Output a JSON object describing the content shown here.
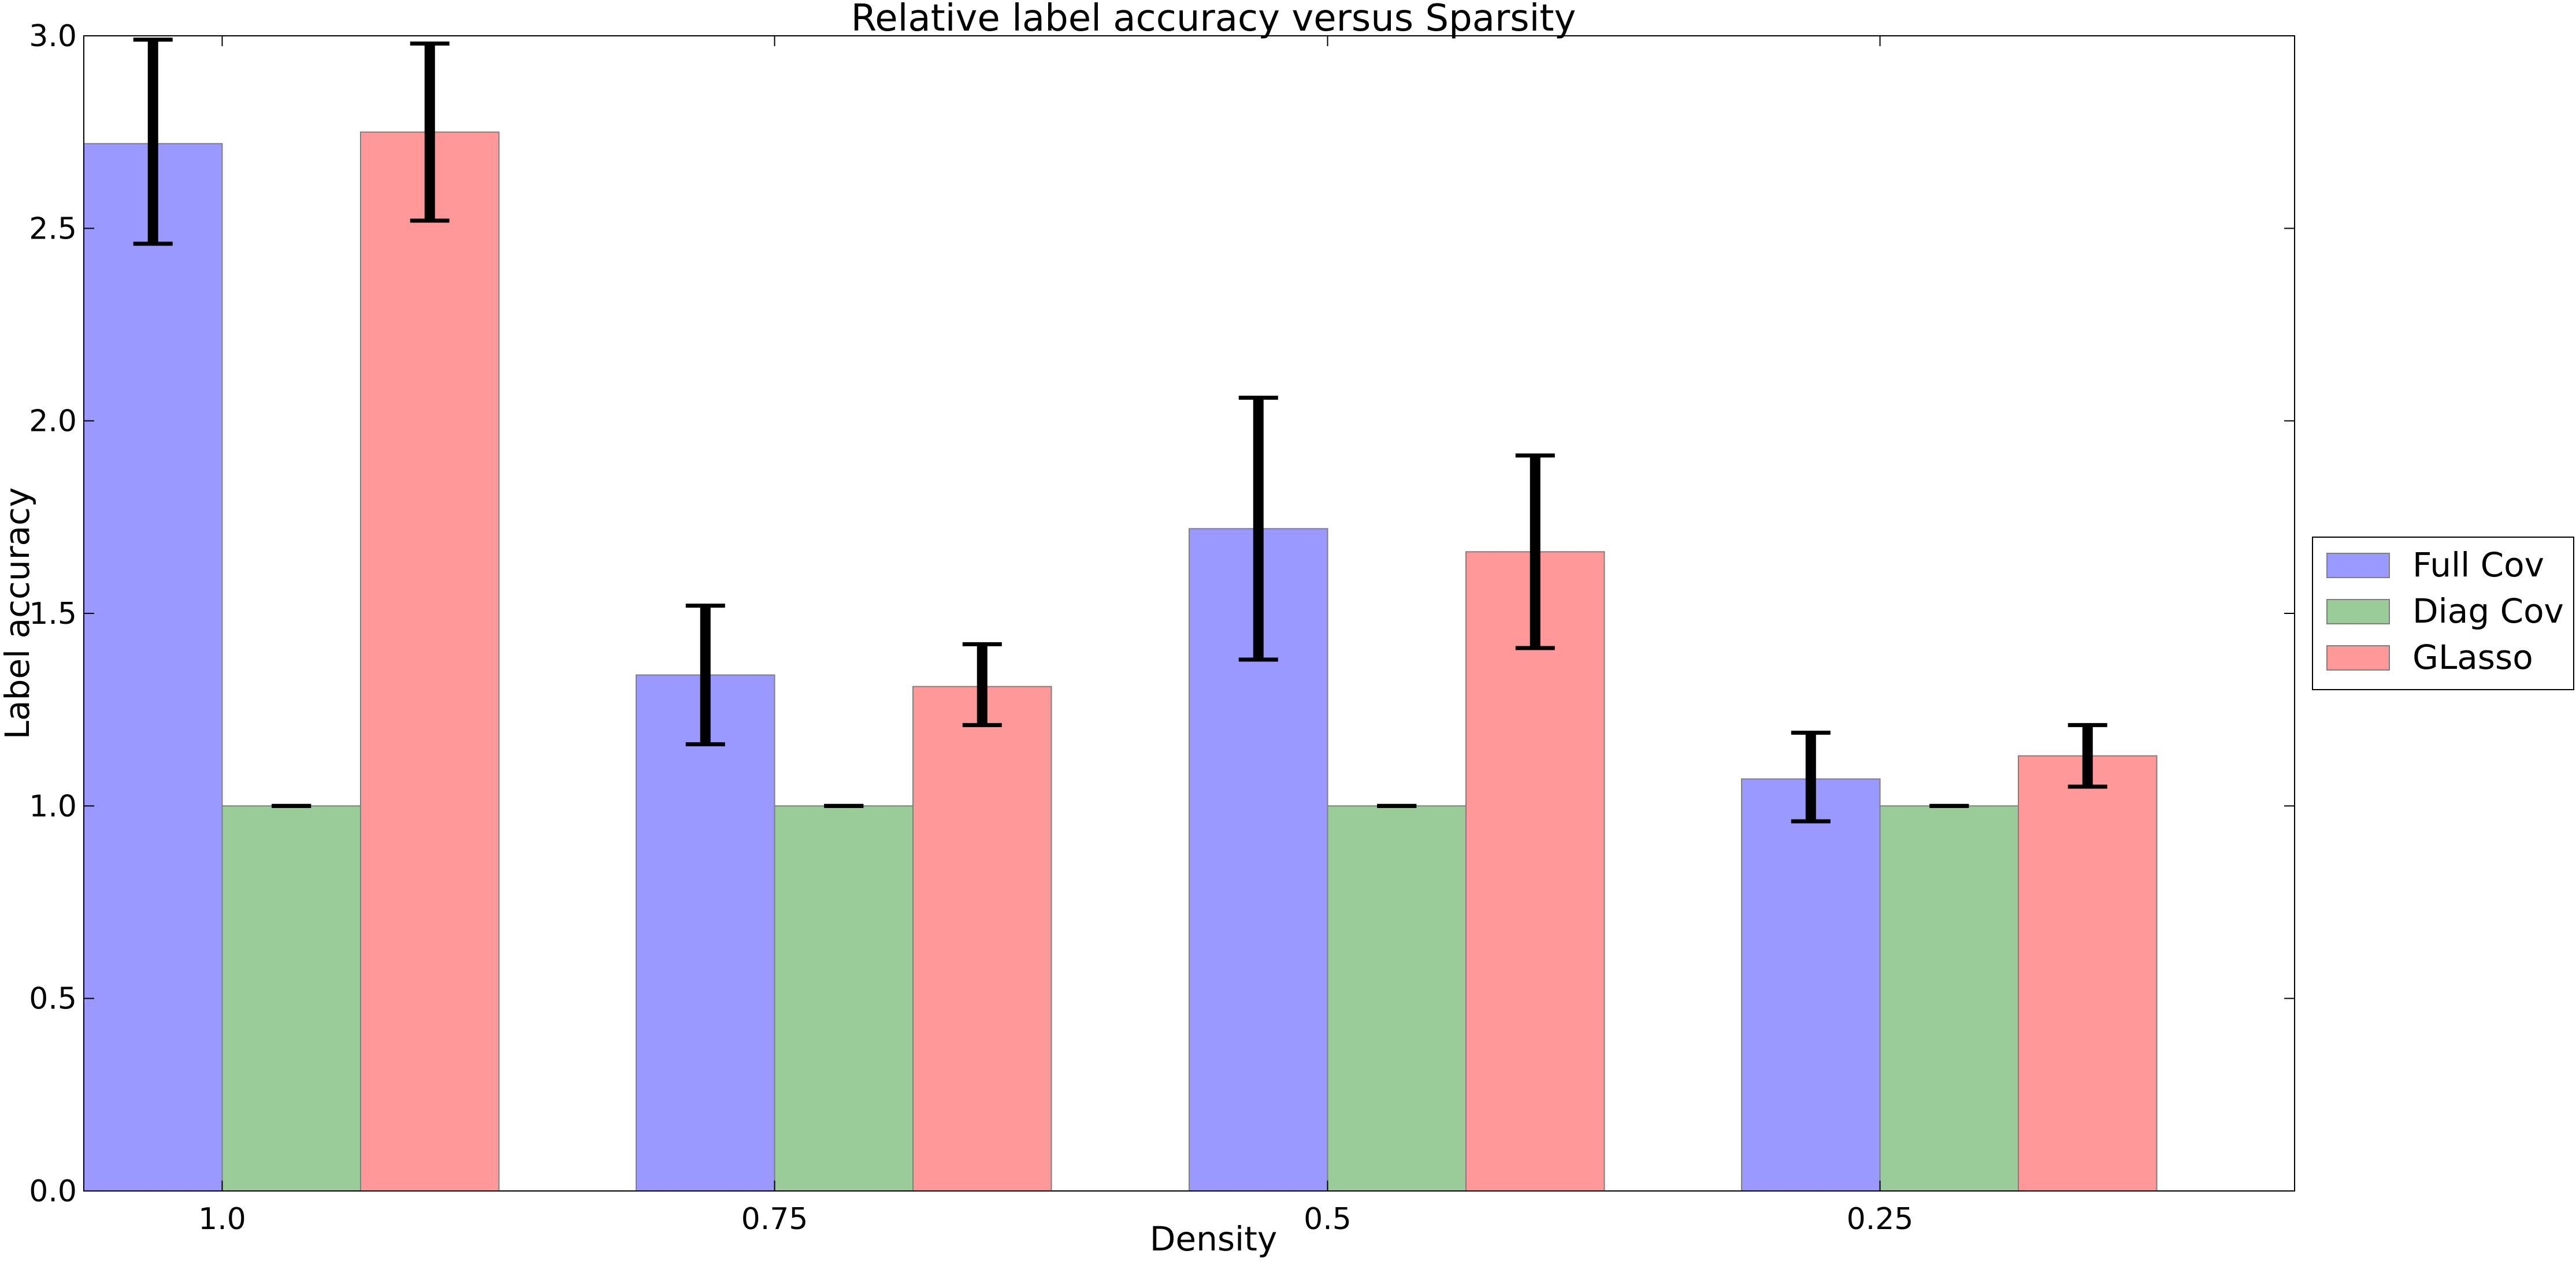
{
  "chart_data": {
    "type": "bar",
    "title": "Relative label accuracy versus Sparsity",
    "xlabel": "Density",
    "ylabel": "Label accuracy",
    "categories": [
      "1.0",
      "0.75",
      "0.5",
      "0.25"
    ],
    "ylim": [
      0.0,
      3.0
    ],
    "yticks": [
      "0.0",
      "0.5",
      "1.0",
      "1.5",
      "2.0",
      "2.5",
      "3.0"
    ],
    "grid": false,
    "legend_position": "right, outside plot area",
    "series": [
      {
        "name": "Full Cov",
        "color": "#9999ff",
        "values": [
          2.72,
          1.34,
          1.72,
          1.07
        ],
        "err_low": [
          2.46,
          1.16,
          1.38,
          0.96
        ],
        "err_high": [
          2.99,
          1.52,
          2.06,
          1.19
        ]
      },
      {
        "name": "Diag Cov",
        "color": "#99cc99",
        "values": [
          1.0,
          1.0,
          1.0,
          1.0
        ],
        "err_low": [
          1.0,
          1.0,
          1.0,
          1.0
        ],
        "err_high": [
          1.0,
          1.0,
          1.0,
          1.0
        ]
      },
      {
        "name": "GLasso",
        "color": "#ff9999",
        "values": [
          2.75,
          1.31,
          1.66,
          1.13
        ],
        "err_low": [
          2.52,
          1.21,
          1.41,
          1.05
        ],
        "err_high": [
          2.98,
          1.42,
          1.91,
          1.21
        ]
      }
    ]
  }
}
